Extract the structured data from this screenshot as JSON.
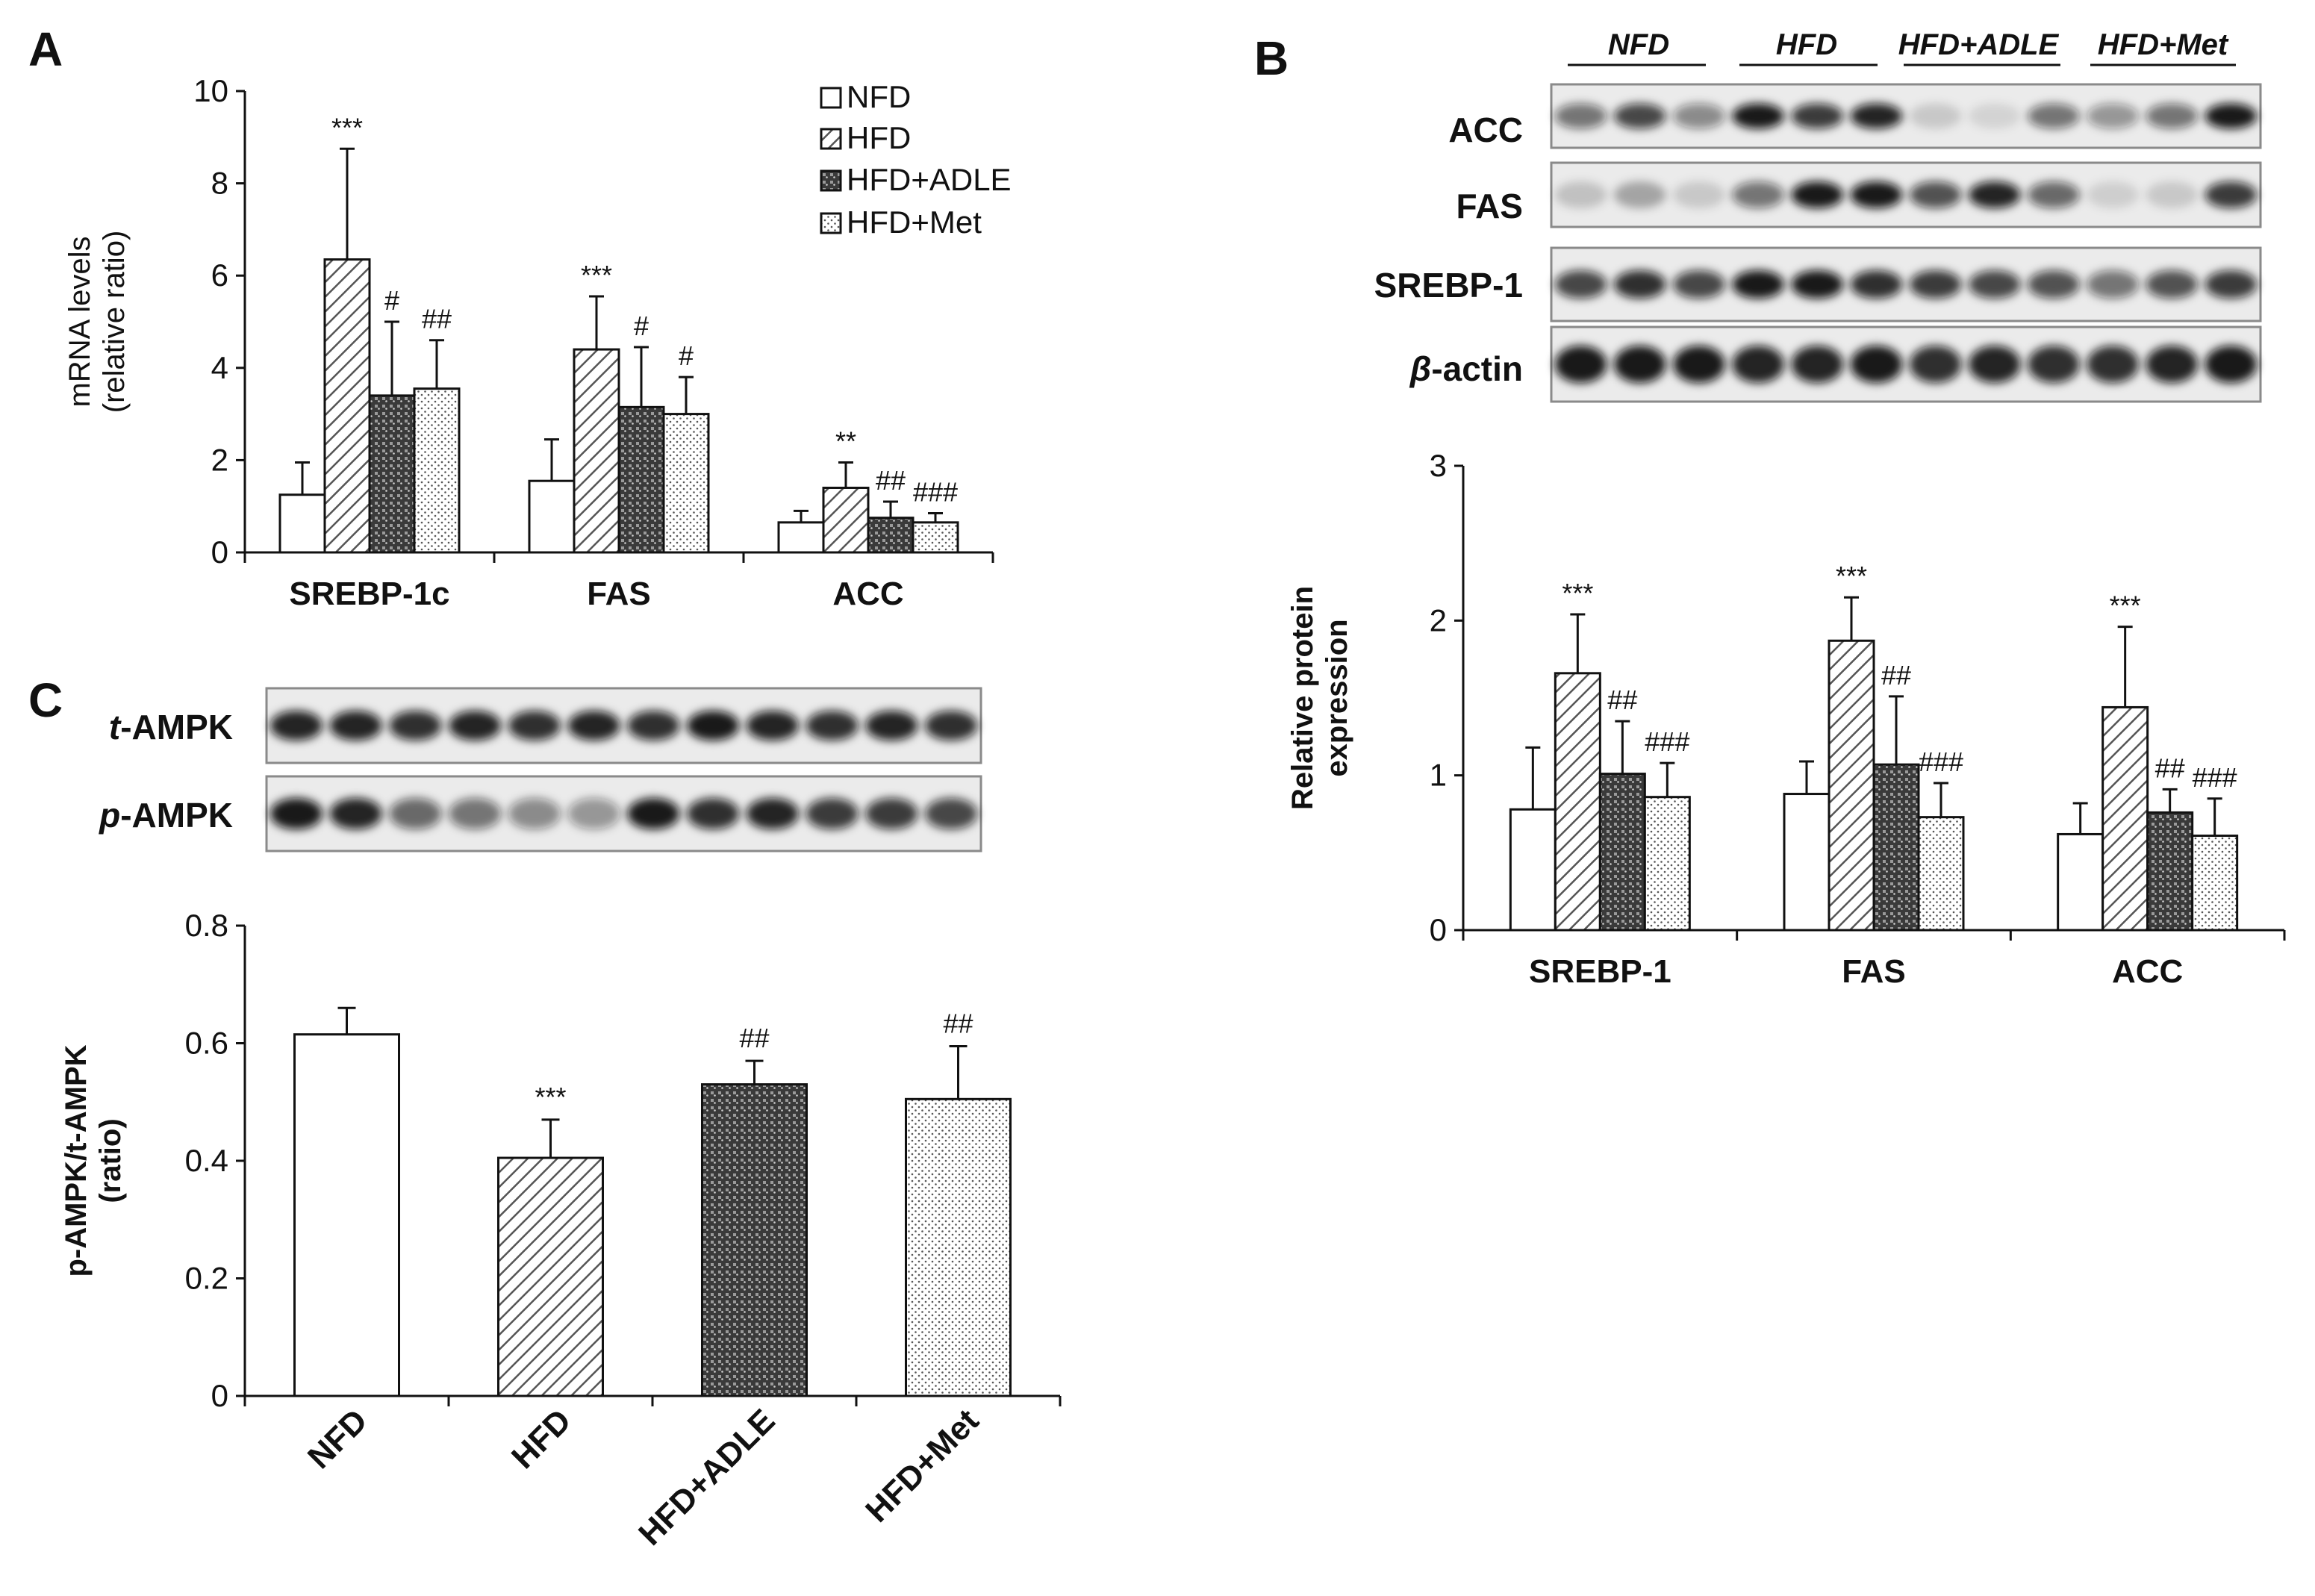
{
  "panels": {
    "A": {
      "letter": "A"
    },
    "B": {
      "letter": "B"
    },
    "C": {
      "letter": "C"
    }
  },
  "colors": {
    "NFD": "#ffffff",
    "HFD": "#d6d6d6",
    "HFD+ADLE": "#5a5a5a",
    "HFD+Met": "#f2f2f2",
    "axis": "#111111"
  },
  "blot_b": {
    "groups": [
      "NFD",
      "HFD",
      "HFD+ADLE",
      "HFD+Met"
    ],
    "rows": [
      {
        "label": "ACC",
        "italic_prefix": ""
      },
      {
        "label": "FAS",
        "italic_prefix": ""
      },
      {
        "label": "SREBP-1",
        "italic_prefix": ""
      },
      {
        "label": "-actin",
        "italic_prefix": "β"
      }
    ]
  },
  "blot_c": {
    "rows": [
      {
        "label": "-AMPK",
        "italic_prefix": "t"
      },
      {
        "label": "-AMPK",
        "italic_prefix": "p"
      }
    ]
  },
  "chart_data": [
    {
      "id": "A",
      "type": "bar",
      "categories": [
        "SREBP-1c",
        "FAS",
        "ACC"
      ],
      "series": [
        {
          "name": "NFD",
          "values": [
            1.25,
            1.55,
            0.65
          ],
          "errors": [
            0.7,
            0.9,
            0.25
          ],
          "sig": [
            "",
            "",
            ""
          ]
        },
        {
          "name": "HFD",
          "values": [
            6.35,
            4.4,
            1.4
          ],
          "errors": [
            2.4,
            1.15,
            0.55
          ],
          "sig": [
            "***",
            "***",
            "**"
          ]
        },
        {
          "name": "HFD+ADLE",
          "values": [
            3.4,
            3.15,
            0.75
          ],
          "errors": [
            1.6,
            1.3,
            0.35
          ],
          "sig": [
            "#",
            "#",
            "##"
          ]
        },
        {
          "name": "HFD+Met",
          "values": [
            3.55,
            3.0,
            0.65
          ],
          "errors": [
            1.05,
            0.8,
            0.2
          ],
          "sig": [
            "##",
            "#",
            "###"
          ]
        }
      ],
      "ylabel": [
        "mRNA levels",
        "(relative ratio)"
      ],
      "ylim": [
        0,
        10
      ],
      "yticks": [
        0,
        2,
        4,
        6,
        8,
        10
      ],
      "legend_position": "top-right",
      "grid": false
    },
    {
      "id": "B",
      "type": "bar",
      "categories": [
        "SREBP-1",
        "FAS",
        "ACC"
      ],
      "series": [
        {
          "name": "NFD",
          "values": [
            0.78,
            0.88,
            0.62
          ],
          "errors": [
            0.4,
            0.21,
            0.2
          ],
          "sig": [
            "",
            "",
            ""
          ]
        },
        {
          "name": "HFD",
          "values": [
            1.66,
            1.87,
            1.44
          ],
          "errors": [
            0.38,
            0.28,
            0.52
          ],
          "sig": [
            "***",
            "***",
            "***"
          ]
        },
        {
          "name": "HFD+ADLE",
          "values": [
            1.01,
            1.07,
            0.76
          ],
          "errors": [
            0.34,
            0.44,
            0.15
          ],
          "sig": [
            "##",
            "##",
            "##"
          ]
        },
        {
          "name": "HFD+Met",
          "values": [
            0.86,
            0.73,
            0.61
          ],
          "errors": [
            0.22,
            0.22,
            0.24
          ],
          "sig": [
            "###",
            "###",
            "###"
          ]
        }
      ],
      "ylabel": [
        "Relative protein",
        "expression"
      ],
      "ylim": [
        0,
        3
      ],
      "yticks": [
        0,
        1,
        2,
        3
      ],
      "grid": false
    },
    {
      "id": "C",
      "type": "bar",
      "categories": [
        "NFD",
        "HFD",
        "HFD+ADLE",
        "HFD+Met"
      ],
      "values": [
        0.615,
        0.405,
        0.53,
        0.505
      ],
      "errors": [
        0.045,
        0.065,
        0.04,
        0.09
      ],
      "sig": [
        "",
        "***",
        "##",
        "##"
      ],
      "ylabel": [
        "p-AMPK/t-AMPK",
        "(ratio)"
      ],
      "ylim": [
        0,
        0.8
      ],
      "yticks": [
        0,
        0.2,
        0.4,
        0.6,
        0.8
      ],
      "grid": false
    }
  ]
}
